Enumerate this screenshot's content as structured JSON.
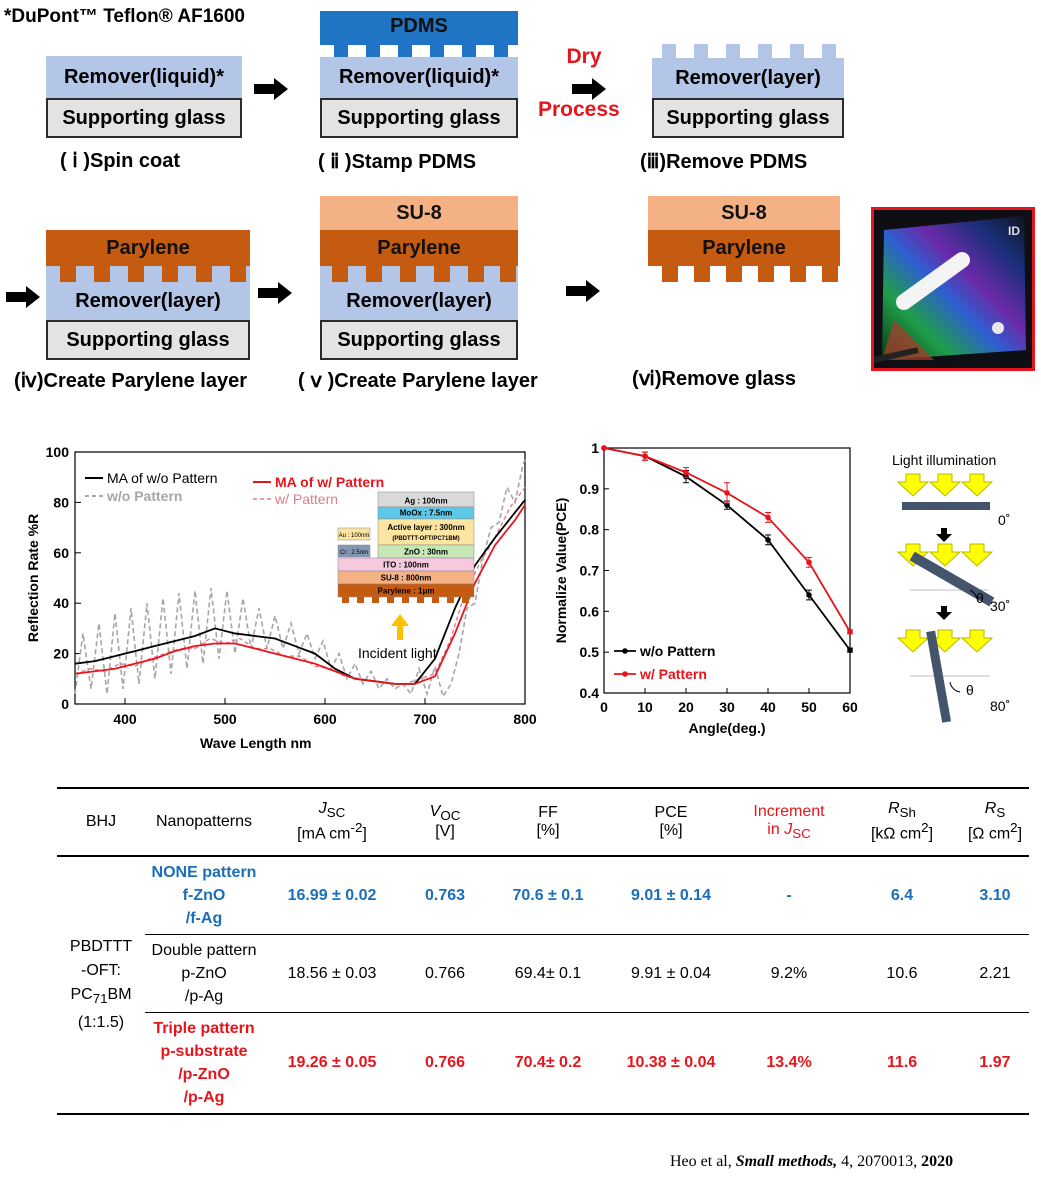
{
  "figure": {
    "note": "*DuPont™ Teflon® AF1600",
    "steps": {
      "s1": "( ⅰ )Spin coat",
      "s2": "( ⅱ )Stamp PDMS",
      "s3": "(ⅲ)Remove PDMS",
      "s4": "(ⅳ)Create Parylene layer",
      "s5": "( ⅴ )Create Parylene layer",
      "s6": "(ⅵ)Remove glass"
    },
    "layers": {
      "remover_liquid": "Remover(liquid)*",
      "remover_layer": "Remover(layer)",
      "supporting_glass": "Supporting glass",
      "pdms": "PDMS",
      "parylene": "Parylene",
      "su8": "SU-8"
    },
    "dry_process": [
      "Dry",
      "Process"
    ],
    "photo_text": "ID"
  },
  "reflection_chart": {
    "ylabel": "Reflection Rate %R",
    "xlabel": "Wave Length nm",
    "xticks": [
      "400",
      "500",
      "600",
      "700",
      "800"
    ],
    "yticks": [
      "0",
      "20",
      "40",
      "60",
      "80",
      "100"
    ],
    "legend": {
      "ma_wo": "MA of w/o Pattern",
      "wo": "w/o Pattern",
      "ma_w": "MA of w/ Pattern",
      "w": "w/ Pattern"
    },
    "stack": {
      "ag": "Ag : 100nm",
      "moox": "MoOx : 7.5nm",
      "active1": "Active layer : 300nm",
      "active2": "(PBDTTT-OFT/PC71BM)",
      "zno": "ZnO : 30nm",
      "ito": "ITO : 100nm",
      "su8": "SU-8 : 800nm",
      "parylene": "Parylene : 1μm",
      "au": "Au : 100nm",
      "cr": "Cr : 2.5nm"
    },
    "incident": "Incident light"
  },
  "pce_chart": {
    "ylabel": "Normalize Value(PCE)",
    "xlabel": "Angle(deg.)",
    "xticks": [
      "0",
      "10",
      "20",
      "30",
      "40",
      "50",
      "60"
    ],
    "yticks": [
      "0.4",
      "0.5",
      "0.6",
      "0.7",
      "0.8",
      "0.9",
      "1"
    ],
    "legend": {
      "wo": "w/o Pattern",
      "w": "w/ Pattern"
    }
  },
  "illumination": {
    "title": "Light illumination",
    "a0": "0˚",
    "a30": "30˚",
    "a80": "80˚",
    "theta": "θ"
  },
  "chart_data": [
    {
      "type": "line",
      "title": "",
      "xlabel": "Wave Length nm",
      "ylabel": "Reflection Rate %R",
      "xlim": [
        350,
        800
      ],
      "ylim": [
        0,
        100
      ],
      "colors": {
        "ma_wo": "#000000",
        "wo": "#a6a6a6",
        "ma_w": "#e8141c",
        "w": "#e07b8a"
      },
      "series": [
        {
          "name": "MA of w/o Pattern",
          "x": [
            350,
            370,
            390,
            410,
            430,
            450,
            470,
            490,
            510,
            530,
            550,
            570,
            590,
            610,
            630,
            650,
            670,
            690,
            710,
            730,
            750,
            770,
            790,
            800
          ],
          "y": [
            16,
            17,
            19,
            21,
            23,
            25,
            27,
            30,
            28,
            27,
            26,
            23,
            20,
            14,
            10,
            9,
            8,
            8,
            18,
            38,
            55,
            66,
            76,
            81
          ]
        },
        {
          "name": "w/o Pattern",
          "x": [
            350,
            358,
            366,
            374,
            382,
            390,
            398,
            406,
            414,
            422,
            430,
            438,
            446,
            454,
            462,
            470,
            478,
            486,
            494,
            502,
            510,
            518,
            526,
            534,
            542,
            550,
            558,
            566,
            574,
            582,
            590,
            598,
            606,
            614,
            622,
            630,
            638,
            646,
            654,
            662,
            670,
            678,
            686,
            694,
            702,
            710,
            718,
            726,
            734,
            742,
            750,
            758,
            766,
            774,
            782,
            790,
            798,
            800
          ],
          "y": [
            4,
            28,
            6,
            32,
            4,
            36,
            6,
            38,
            8,
            40,
            10,
            42,
            12,
            44,
            14,
            45,
            16,
            46,
            18,
            45,
            20,
            42,
            22,
            38,
            22,
            35,
            22,
            32,
            20,
            28,
            18,
            25,
            14,
            20,
            10,
            16,
            8,
            13,
            6,
            10,
            6,
            8,
            4,
            14,
            4,
            15,
            3,
            8,
            20,
            38,
            40,
            58,
            70,
            72,
            86,
            80,
            95,
            97
          ]
        },
        {
          "name": "MA of w/ Pattern",
          "x": [
            350,
            370,
            390,
            410,
            430,
            450,
            470,
            490,
            510,
            530,
            550,
            570,
            590,
            610,
            630,
            650,
            670,
            690,
            710,
            730,
            750,
            770,
            790,
            800
          ],
          "y": [
            12,
            13,
            14,
            16,
            18,
            21,
            23,
            24,
            24,
            22,
            20,
            18,
            16,
            13,
            10,
            9,
            8,
            8,
            11,
            28,
            48,
            63,
            73,
            79
          ]
        },
        {
          "name": "w/ Pattern",
          "x": [
            350,
            365,
            380,
            395,
            410,
            425,
            440,
            455,
            470,
            485,
            500,
            515,
            530,
            545,
            560,
            575,
            590,
            605,
            620,
            635,
            650,
            665,
            680,
            695,
            710,
            725,
            740,
            755,
            770,
            785,
            800
          ],
          "y": [
            12,
            14,
            13,
            16,
            15,
            18,
            20,
            22,
            22,
            26,
            24,
            26,
            22,
            22,
            19,
            19,
            15,
            14,
            11,
            10,
            9,
            8,
            8,
            10,
            12,
            25,
            44,
            56,
            66,
            78,
            86
          ]
        }
      ]
    },
    {
      "type": "line",
      "title": "",
      "xlabel": "Angle(deg.)",
      "ylabel": "Normalize Value(PCE)",
      "xlim": [
        0,
        60
      ],
      "ylim": [
        0.4,
        1.0
      ],
      "colors": {
        "wo": "#000000",
        "w": "#e8141c"
      },
      "x": [
        0,
        10,
        20,
        30,
        40,
        50,
        60
      ],
      "series": [
        {
          "name": "w/o Pattern",
          "values": [
            1.0,
            0.98,
            0.93,
            0.86,
            0.775,
            0.64,
            0.505
          ],
          "err": [
            0,
            0.01,
            0.015,
            0.01,
            0.012,
            0.012,
            0.005
          ]
        },
        {
          "name": "w/ Pattern",
          "values": [
            1.0,
            0.98,
            0.94,
            0.89,
            0.83,
            0.72,
            0.55
          ],
          "err": [
            0,
            0.01,
            0.012,
            0.025,
            0.012,
            0.012,
            0.005
          ]
        }
      ]
    }
  ],
  "table": {
    "headers": {
      "bhj": "BHJ",
      "nano": "Nanopatterns",
      "jsc_sym": "J",
      "jsc_sub": "SC",
      "jsc_unit_a": "[mA cm",
      "jsc_unit_sup": "-2",
      "jsc_unit_b": "]",
      "voc_sym": "V",
      "voc_sub": "OC",
      "voc_unit": "[V]",
      "ff": "FF",
      "ff_unit": "[%]",
      "pce": "PCE",
      "pce_unit": "[%]",
      "inc1": "Increment",
      "inc2_a": "in ",
      "inc2_sym": "J",
      "inc2_sub": "SC",
      "rsh_sym": "R",
      "rsh_sub": "Sh",
      "rsh_unit_a": "[kΩ cm",
      "rsh_unit_sup": "2",
      "rsh_unit_b": "]",
      "rs_sym": "R",
      "rs_sub": "S",
      "rs_unit_a": "[Ω cm",
      "rs_unit_sup": "2",
      "rs_unit_b": "]"
    },
    "bhj": {
      "l1": "PBDTTT",
      "l2": "-OFT:",
      "l3a": "PC",
      "l3sub": "71",
      "l3b": "BM",
      "l4": "(1:1.5)"
    },
    "rows": [
      {
        "nano": [
          "NONE pattern",
          "f-ZnO",
          "/f-Ag"
        ],
        "jsc": "16.99 ± 0.02",
        "voc": "0.763",
        "ff": "70.6 ± 0.1",
        "pce": "9.01 ± 0.14",
        "inc": "-",
        "rsh": "6.4",
        "rs": "3.10"
      },
      {
        "nano": [
          "Double pattern",
          "p-ZnO",
          "/p-Ag"
        ],
        "jsc": "18.56 ± 0.03",
        "voc": "0.766",
        "ff": "69.4± 0.1",
        "pce": "9.91 ± 0.04",
        "inc": "9.2%",
        "rsh": "10.6",
        "rs": "2.21"
      },
      {
        "nano": [
          "Triple pattern",
          "p-substrate",
          "/p-ZnO",
          "/p-Ag"
        ],
        "jsc": "19.26 ± 0.05",
        "voc": "0.766",
        "ff": "70.4± 0.2",
        "pce": "10.38 ± 0.04",
        "inc": "13.4%",
        "rsh": "11.6",
        "rs": "1.97"
      }
    ]
  },
  "citation": {
    "a": "Heo et al, ",
    "journal": "Small methods,",
    "b": " 4, 2070013, ",
    "year": "2020"
  }
}
